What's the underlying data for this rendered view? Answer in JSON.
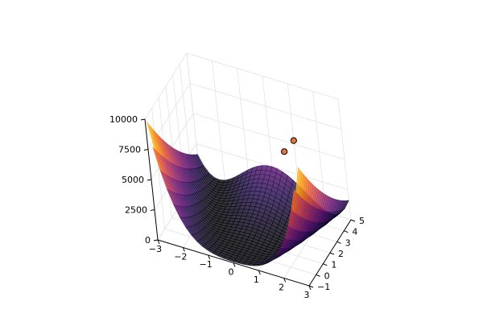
{
  "chart_data": {
    "type": "surface",
    "title": "",
    "xlabel": "",
    "ylabel": "",
    "zlabel": "",
    "x": {
      "range": [
        -3,
        3
      ],
      "ticks": [
        -3,
        -2,
        -1,
        0,
        1,
        2,
        3
      ],
      "tick_labels": [
        "−3",
        "−2",
        "−1",
        "0",
        "1",
        "2",
        "3"
      ]
    },
    "y": {
      "range": [
        -1,
        5
      ],
      "ticks": [
        -1,
        0,
        1,
        2,
        3,
        4,
        5
      ],
      "tick_labels": [
        "−1",
        "0",
        "1",
        "2",
        "3",
        "4",
        "5"
      ]
    },
    "z": {
      "range": [
        0,
        10000
      ],
      "ticks": [
        0,
        2500,
        5000,
        7500,
        10000
      ],
      "tick_labels": [
        "0",
        "2500",
        "5000",
        "7500",
        "10000"
      ]
    },
    "surface": {
      "function": "rosenbrock",
      "colormap": "inferno",
      "alpha": 0.8
    },
    "points": [
      {
        "x": 1.1,
        "y": 3.4,
        "z": 5900
      },
      {
        "x": 1.3,
        "y": 4.1,
        "z": 6300
      }
    ],
    "point_color": "#e8743b",
    "grid": true,
    "legend": "none"
  }
}
